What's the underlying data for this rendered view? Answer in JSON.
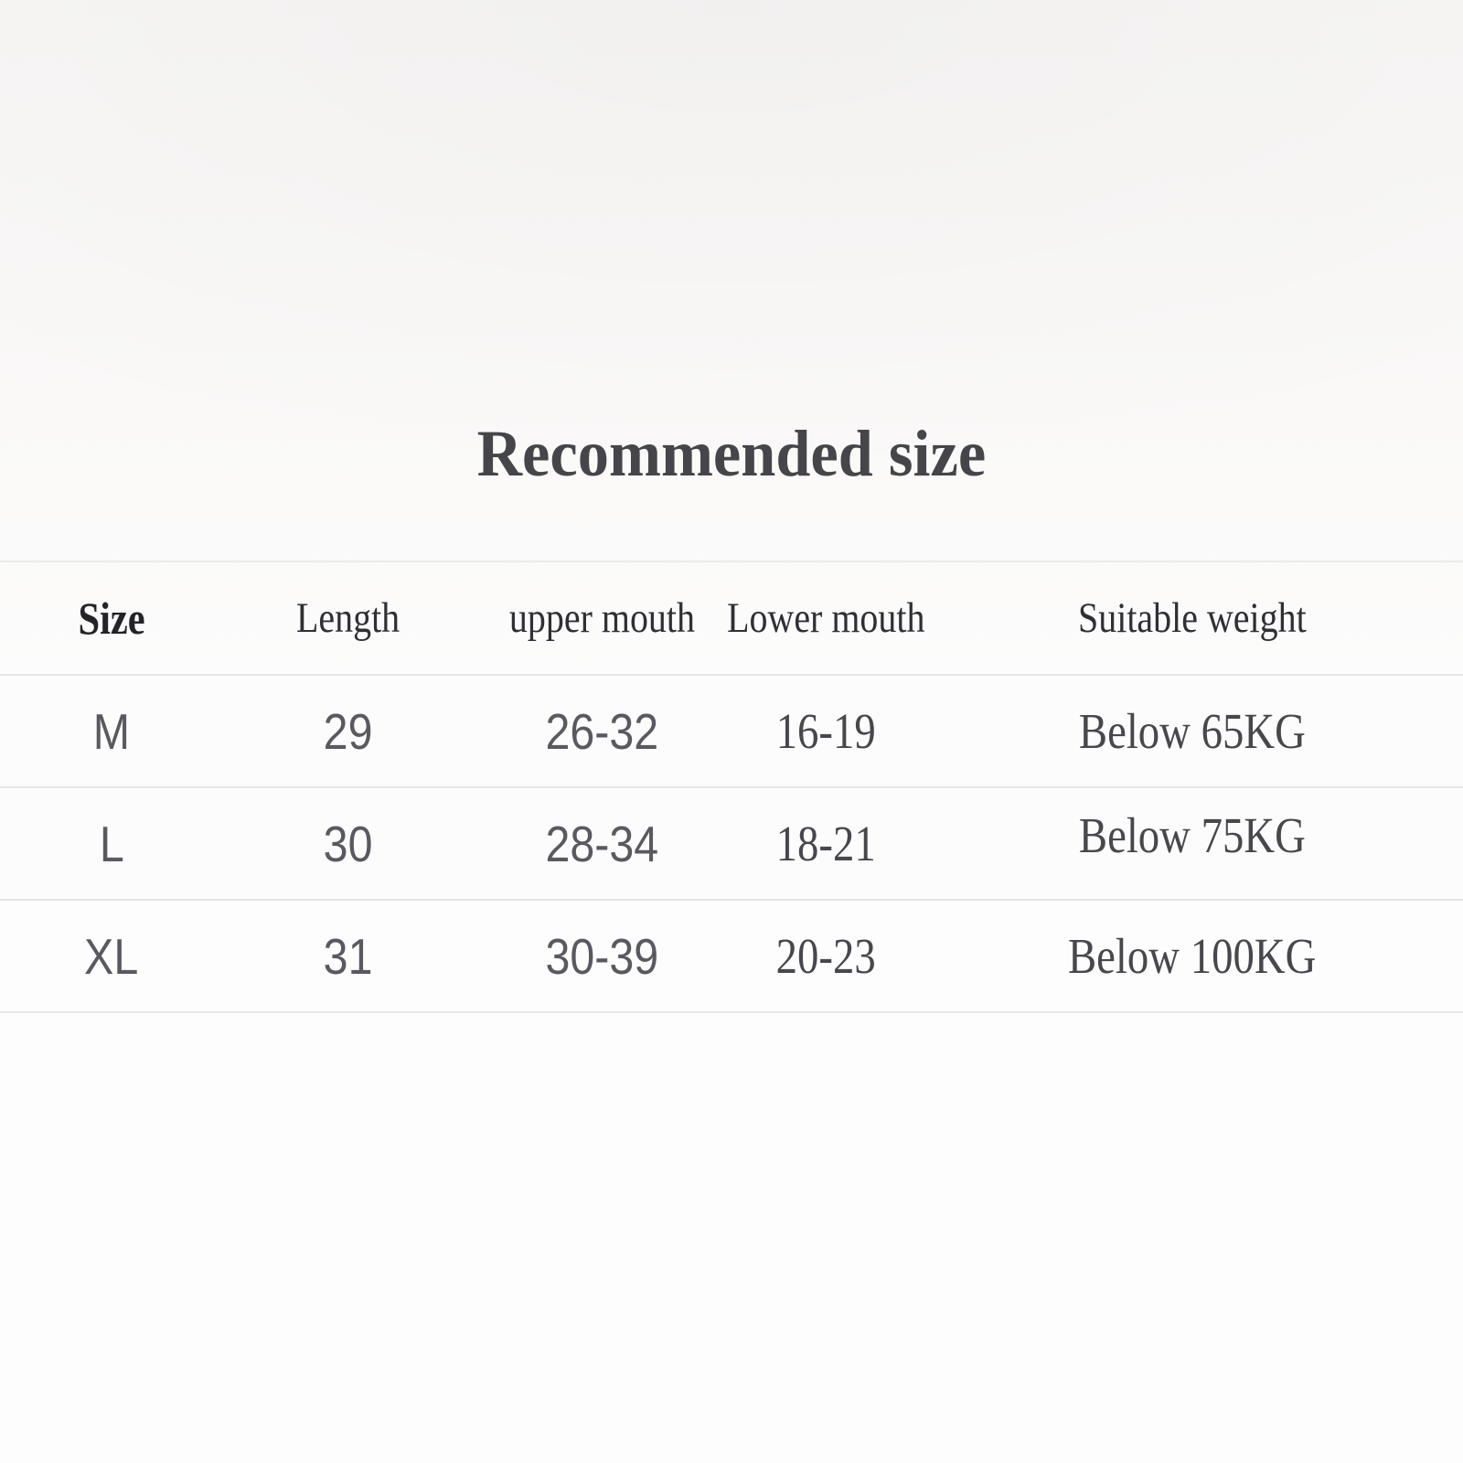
{
  "title": "Recommended size",
  "table": {
    "columns": [
      "Size",
      "Length",
      "upper mouth",
      "Lower mouth",
      "Suitable weight"
    ],
    "rows": [
      {
        "size": "M",
        "length": "29",
        "upper_mouth": "26-32",
        "lower_mouth": "16-19",
        "suitable_weight": "Below 65KG"
      },
      {
        "size": "L",
        "length": "30",
        "upper_mouth": "28-34",
        "lower_mouth": "18-21",
        "suitable_weight": "Below 75KG"
      },
      {
        "size": "XL",
        "length": "31",
        "upper_mouth": "30-39",
        "lower_mouth": "20-23",
        "suitable_weight": "Below 100KG"
      }
    ]
  },
  "style_colors": {
    "title_text": "#45454a",
    "header_text": "#2f2f34",
    "value_text": "#595960",
    "divider_line": "#e7e6e6",
    "background": "#fbfaf9"
  }
}
